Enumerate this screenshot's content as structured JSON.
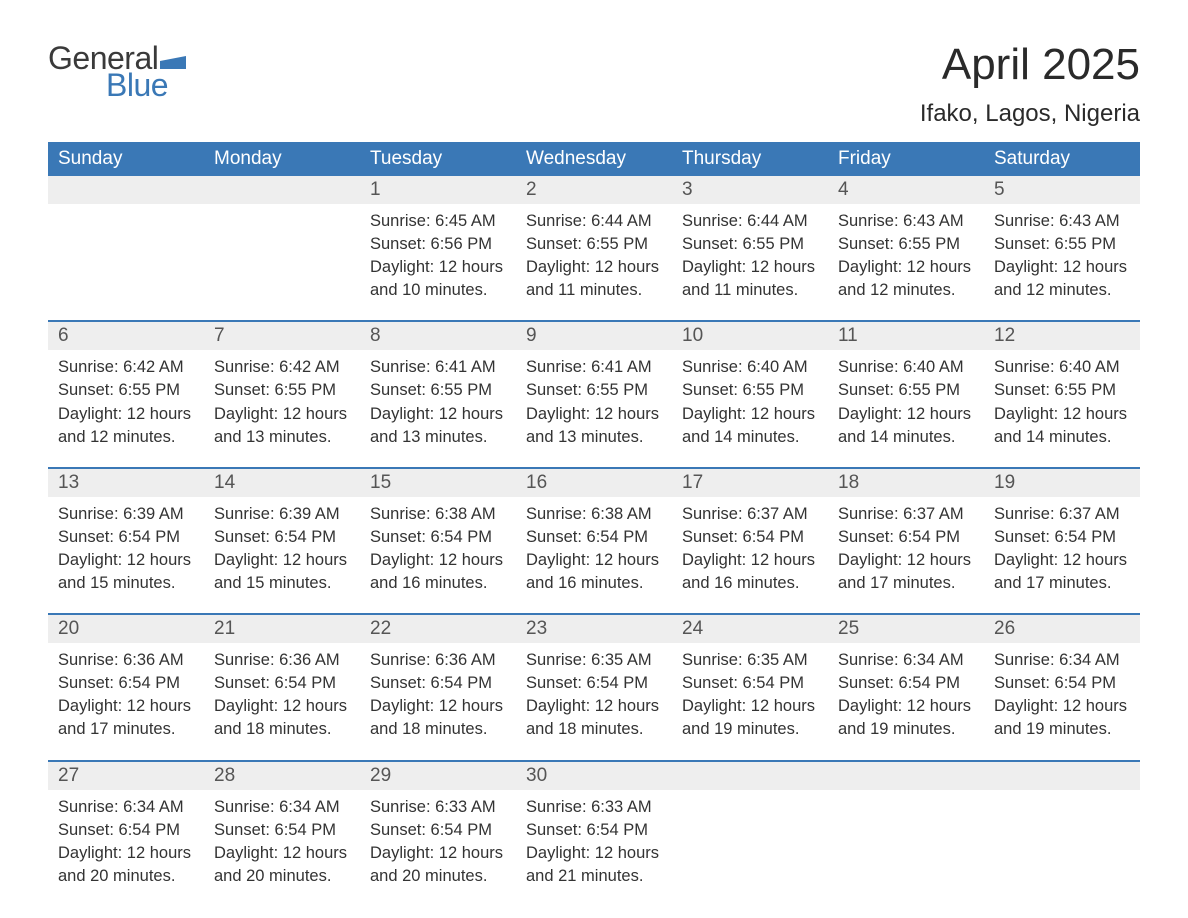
{
  "logo": {
    "text_general": "General",
    "text_blue": "Blue",
    "flag_color": "#3a78b6"
  },
  "header": {
    "month_title": "April 2025",
    "location": "Ifako, Lagos, Nigeria"
  },
  "styling": {
    "header_bg": "#3a78b6",
    "header_text": "#ffffff",
    "daynum_bg": "#eeeeee",
    "row_border": "#3a78b6",
    "body_text": "#333333",
    "title_fontsize": 44,
    "location_fontsize": 24,
    "weekday_fontsize": 19,
    "daynum_fontsize": 19,
    "body_fontsize": 16.5,
    "background": "#ffffff"
  },
  "weekdays": [
    "Sunday",
    "Monday",
    "Tuesday",
    "Wednesday",
    "Thursday",
    "Friday",
    "Saturday"
  ],
  "weeks": [
    {
      "days": [
        {
          "num": "",
          "sunrise": "",
          "sunset": "",
          "daylight1": "",
          "daylight2": ""
        },
        {
          "num": "",
          "sunrise": "",
          "sunset": "",
          "daylight1": "",
          "daylight2": ""
        },
        {
          "num": "1",
          "sunrise": "Sunrise: 6:45 AM",
          "sunset": "Sunset: 6:56 PM",
          "daylight1": "Daylight: 12 hours",
          "daylight2": "and 10 minutes."
        },
        {
          "num": "2",
          "sunrise": "Sunrise: 6:44 AM",
          "sunset": "Sunset: 6:55 PM",
          "daylight1": "Daylight: 12 hours",
          "daylight2": "and 11 minutes."
        },
        {
          "num": "3",
          "sunrise": "Sunrise: 6:44 AM",
          "sunset": "Sunset: 6:55 PM",
          "daylight1": "Daylight: 12 hours",
          "daylight2": "and 11 minutes."
        },
        {
          "num": "4",
          "sunrise": "Sunrise: 6:43 AM",
          "sunset": "Sunset: 6:55 PM",
          "daylight1": "Daylight: 12 hours",
          "daylight2": "and 12 minutes."
        },
        {
          "num": "5",
          "sunrise": "Sunrise: 6:43 AM",
          "sunset": "Sunset: 6:55 PM",
          "daylight1": "Daylight: 12 hours",
          "daylight2": "and 12 minutes."
        }
      ]
    },
    {
      "days": [
        {
          "num": "6",
          "sunrise": "Sunrise: 6:42 AM",
          "sunset": "Sunset: 6:55 PM",
          "daylight1": "Daylight: 12 hours",
          "daylight2": "and 12 minutes."
        },
        {
          "num": "7",
          "sunrise": "Sunrise: 6:42 AM",
          "sunset": "Sunset: 6:55 PM",
          "daylight1": "Daylight: 12 hours",
          "daylight2": "and 13 minutes."
        },
        {
          "num": "8",
          "sunrise": "Sunrise: 6:41 AM",
          "sunset": "Sunset: 6:55 PM",
          "daylight1": "Daylight: 12 hours",
          "daylight2": "and 13 minutes."
        },
        {
          "num": "9",
          "sunrise": "Sunrise: 6:41 AM",
          "sunset": "Sunset: 6:55 PM",
          "daylight1": "Daylight: 12 hours",
          "daylight2": "and 13 minutes."
        },
        {
          "num": "10",
          "sunrise": "Sunrise: 6:40 AM",
          "sunset": "Sunset: 6:55 PM",
          "daylight1": "Daylight: 12 hours",
          "daylight2": "and 14 minutes."
        },
        {
          "num": "11",
          "sunrise": "Sunrise: 6:40 AM",
          "sunset": "Sunset: 6:55 PM",
          "daylight1": "Daylight: 12 hours",
          "daylight2": "and 14 minutes."
        },
        {
          "num": "12",
          "sunrise": "Sunrise: 6:40 AM",
          "sunset": "Sunset: 6:55 PM",
          "daylight1": "Daylight: 12 hours",
          "daylight2": "and 14 minutes."
        }
      ]
    },
    {
      "days": [
        {
          "num": "13",
          "sunrise": "Sunrise: 6:39 AM",
          "sunset": "Sunset: 6:54 PM",
          "daylight1": "Daylight: 12 hours",
          "daylight2": "and 15 minutes."
        },
        {
          "num": "14",
          "sunrise": "Sunrise: 6:39 AM",
          "sunset": "Sunset: 6:54 PM",
          "daylight1": "Daylight: 12 hours",
          "daylight2": "and 15 minutes."
        },
        {
          "num": "15",
          "sunrise": "Sunrise: 6:38 AM",
          "sunset": "Sunset: 6:54 PM",
          "daylight1": "Daylight: 12 hours",
          "daylight2": "and 16 minutes."
        },
        {
          "num": "16",
          "sunrise": "Sunrise: 6:38 AM",
          "sunset": "Sunset: 6:54 PM",
          "daylight1": "Daylight: 12 hours",
          "daylight2": "and 16 minutes."
        },
        {
          "num": "17",
          "sunrise": "Sunrise: 6:37 AM",
          "sunset": "Sunset: 6:54 PM",
          "daylight1": "Daylight: 12 hours",
          "daylight2": "and 16 minutes."
        },
        {
          "num": "18",
          "sunrise": "Sunrise: 6:37 AM",
          "sunset": "Sunset: 6:54 PM",
          "daylight1": "Daylight: 12 hours",
          "daylight2": "and 17 minutes."
        },
        {
          "num": "19",
          "sunrise": "Sunrise: 6:37 AM",
          "sunset": "Sunset: 6:54 PM",
          "daylight1": "Daylight: 12 hours",
          "daylight2": "and 17 minutes."
        }
      ]
    },
    {
      "days": [
        {
          "num": "20",
          "sunrise": "Sunrise: 6:36 AM",
          "sunset": "Sunset: 6:54 PM",
          "daylight1": "Daylight: 12 hours",
          "daylight2": "and 17 minutes."
        },
        {
          "num": "21",
          "sunrise": "Sunrise: 6:36 AM",
          "sunset": "Sunset: 6:54 PM",
          "daylight1": "Daylight: 12 hours",
          "daylight2": "and 18 minutes."
        },
        {
          "num": "22",
          "sunrise": "Sunrise: 6:36 AM",
          "sunset": "Sunset: 6:54 PM",
          "daylight1": "Daylight: 12 hours",
          "daylight2": "and 18 minutes."
        },
        {
          "num": "23",
          "sunrise": "Sunrise: 6:35 AM",
          "sunset": "Sunset: 6:54 PM",
          "daylight1": "Daylight: 12 hours",
          "daylight2": "and 18 minutes."
        },
        {
          "num": "24",
          "sunrise": "Sunrise: 6:35 AM",
          "sunset": "Sunset: 6:54 PM",
          "daylight1": "Daylight: 12 hours",
          "daylight2": "and 19 minutes."
        },
        {
          "num": "25",
          "sunrise": "Sunrise: 6:34 AM",
          "sunset": "Sunset: 6:54 PM",
          "daylight1": "Daylight: 12 hours",
          "daylight2": "and 19 minutes."
        },
        {
          "num": "26",
          "sunrise": "Sunrise: 6:34 AM",
          "sunset": "Sunset: 6:54 PM",
          "daylight1": "Daylight: 12 hours",
          "daylight2": "and 19 minutes."
        }
      ]
    },
    {
      "days": [
        {
          "num": "27",
          "sunrise": "Sunrise: 6:34 AM",
          "sunset": "Sunset: 6:54 PM",
          "daylight1": "Daylight: 12 hours",
          "daylight2": "and 20 minutes."
        },
        {
          "num": "28",
          "sunrise": "Sunrise: 6:34 AM",
          "sunset": "Sunset: 6:54 PM",
          "daylight1": "Daylight: 12 hours",
          "daylight2": "and 20 minutes."
        },
        {
          "num": "29",
          "sunrise": "Sunrise: 6:33 AM",
          "sunset": "Sunset: 6:54 PM",
          "daylight1": "Daylight: 12 hours",
          "daylight2": "and 20 minutes."
        },
        {
          "num": "30",
          "sunrise": "Sunrise: 6:33 AM",
          "sunset": "Sunset: 6:54 PM",
          "daylight1": "Daylight: 12 hours",
          "daylight2": "and 21 minutes."
        },
        {
          "num": "",
          "sunrise": "",
          "sunset": "",
          "daylight1": "",
          "daylight2": ""
        },
        {
          "num": "",
          "sunrise": "",
          "sunset": "",
          "daylight1": "",
          "daylight2": ""
        },
        {
          "num": "",
          "sunrise": "",
          "sunset": "",
          "daylight1": "",
          "daylight2": ""
        }
      ]
    }
  ]
}
